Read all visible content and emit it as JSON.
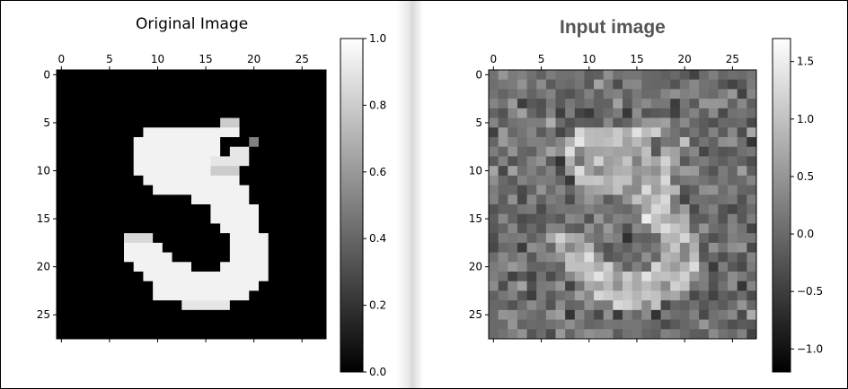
{
  "chart_data": [
    {
      "type": "heatmap",
      "title": "Original Image",
      "rows": 28,
      "cols": 28,
      "xticks": [
        0,
        5,
        10,
        15,
        20,
        25
      ],
      "yticks": [
        0,
        5,
        10,
        15,
        20,
        25
      ],
      "colorbar": {
        "range": [
          0.0,
          1.0
        ],
        "ticks": [
          "0.0",
          "0.2",
          "0.4",
          "0.6",
          "0.8",
          "1.0"
        ],
        "colormap": "gray"
      },
      "description": "MNIST handwritten digit 5",
      "runs": [
        [
          5,
          17,
          18,
          0.8
        ],
        [
          6,
          9,
          18,
          0.95
        ],
        [
          7,
          8,
          16,
          0.95
        ],
        [
          7,
          20,
          20,
          0.5
        ],
        [
          8,
          8,
          16,
          0.95
        ],
        [
          8,
          18,
          19,
          0.9
        ],
        [
          9,
          8,
          16,
          0.95
        ],
        [
          9,
          16,
          19,
          0.9
        ],
        [
          10,
          8,
          15,
          0.95
        ],
        [
          10,
          16,
          18,
          0.8
        ],
        [
          11,
          9,
          18,
          0.95
        ],
        [
          12,
          10,
          19,
          0.95
        ],
        [
          13,
          14,
          19,
          0.95
        ],
        [
          14,
          16,
          20,
          0.95
        ],
        [
          15,
          16,
          20,
          0.95
        ],
        [
          16,
          17,
          20,
          0.95
        ],
        [
          17,
          7,
          9,
          0.85
        ],
        [
          17,
          18,
          21,
          0.95
        ],
        [
          18,
          7,
          10,
          0.95
        ],
        [
          18,
          18,
          21,
          0.95
        ],
        [
          19,
          7,
          11,
          0.95
        ],
        [
          19,
          18,
          21,
          0.95
        ],
        [
          20,
          8,
          13,
          0.95
        ],
        [
          20,
          17,
          21,
          0.95
        ],
        [
          21,
          9,
          21,
          0.95
        ],
        [
          22,
          10,
          20,
          0.95
        ],
        [
          23,
          10,
          19,
          0.95
        ],
        [
          24,
          13,
          17,
          0.9
        ]
      ]
    },
    {
      "type": "heatmap",
      "title": "Input image",
      "rows": 28,
      "cols": 28,
      "xticks": [
        0,
        5,
        10,
        15,
        20,
        25
      ],
      "yticks": [
        0,
        5,
        10,
        15,
        20,
        25
      ],
      "colorbar": {
        "range": [
          -1.2,
          1.7
        ],
        "ticks": [
          "−1.0",
          "−0.5",
          "0.0",
          "0.5",
          "1.0",
          "1.5"
        ],
        "tick_values": [
          -1.0,
          -0.5,
          0.0,
          0.5,
          1.0,
          1.5
        ],
        "colormap": "gray"
      },
      "description": "Noisy version of the digit 5 (original plus gaussian noise)"
    }
  ]
}
